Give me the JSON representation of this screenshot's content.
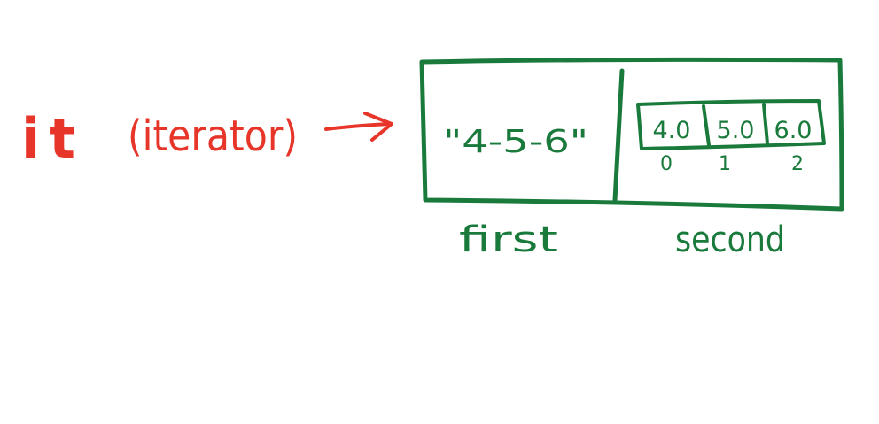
{
  "colors": {
    "red": "#e8352a",
    "green": "#1a7a3c",
    "background": "#ffffff"
  },
  "iterator": {
    "name": "it",
    "paren_label": "(iterator)"
  },
  "pair": {
    "first_value": "\"4-5-6\"",
    "first_label": "first",
    "second_label": "second",
    "vector": {
      "elements": [
        "4.0",
        "5.0",
        "6.0"
      ],
      "indices": [
        "0",
        "1",
        "2"
      ]
    }
  }
}
